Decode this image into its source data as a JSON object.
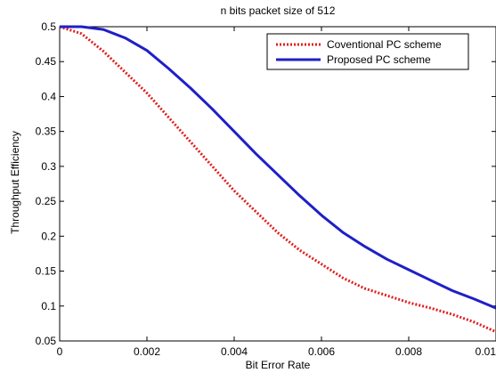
{
  "chart_data": {
    "type": "line",
    "title": "n bits packet size of 512",
    "xlabel": "Bit Error Rate",
    "ylabel": "Throughput Efficiency",
    "xlim": [
      0,
      0.01
    ],
    "ylim": [
      0.05,
      0.5
    ],
    "xticks": [
      0,
      0.002,
      0.004,
      0.006,
      0.008,
      0.01
    ],
    "xtick_labels": [
      "0",
      "0.002",
      "0.004",
      "0.006",
      "0.008",
      "0.01"
    ],
    "yticks": [
      0.05,
      0.1,
      0.15,
      0.2,
      0.25,
      0.3,
      0.35,
      0.4,
      0.45,
      0.5
    ],
    "ytick_labels": [
      "0.05",
      "0.1",
      "0.15",
      "0.2",
      "0.25",
      "0.3",
      "0.35",
      "0.4",
      "0.45",
      "0.5"
    ],
    "grid": false,
    "legend_position": "top-right",
    "x": [
      0,
      0.0005,
      0.001,
      0.0015,
      0.002,
      0.0025,
      0.003,
      0.0035,
      0.004,
      0.0045,
      0.005,
      0.0055,
      0.006,
      0.0065,
      0.007,
      0.0075,
      0.008,
      0.0085,
      0.009,
      0.0095,
      0.01
    ],
    "series": [
      {
        "name": "Coventional PC scheme",
        "color": "#e02020",
        "line_style": "dotted",
        "values": [
          0.5,
          0.49,
          0.465,
          0.435,
          0.405,
          0.37,
          0.335,
          0.3,
          0.265,
          0.235,
          0.205,
          0.18,
          0.16,
          0.14,
          0.125,
          0.115,
          0.105,
          0.097,
          0.088,
          0.077,
          0.063
        ]
      },
      {
        "name": "Proposed PC scheme",
        "color": "#1f1fc8",
        "line_style": "solid",
        "values": [
          0.5,
          0.5,
          0.496,
          0.484,
          0.466,
          0.44,
          0.412,
          0.382,
          0.35,
          0.318,
          0.288,
          0.258,
          0.23,
          0.205,
          0.185,
          0.167,
          0.152,
          0.137,
          0.122,
          0.11,
          0.097
        ]
      }
    ]
  }
}
